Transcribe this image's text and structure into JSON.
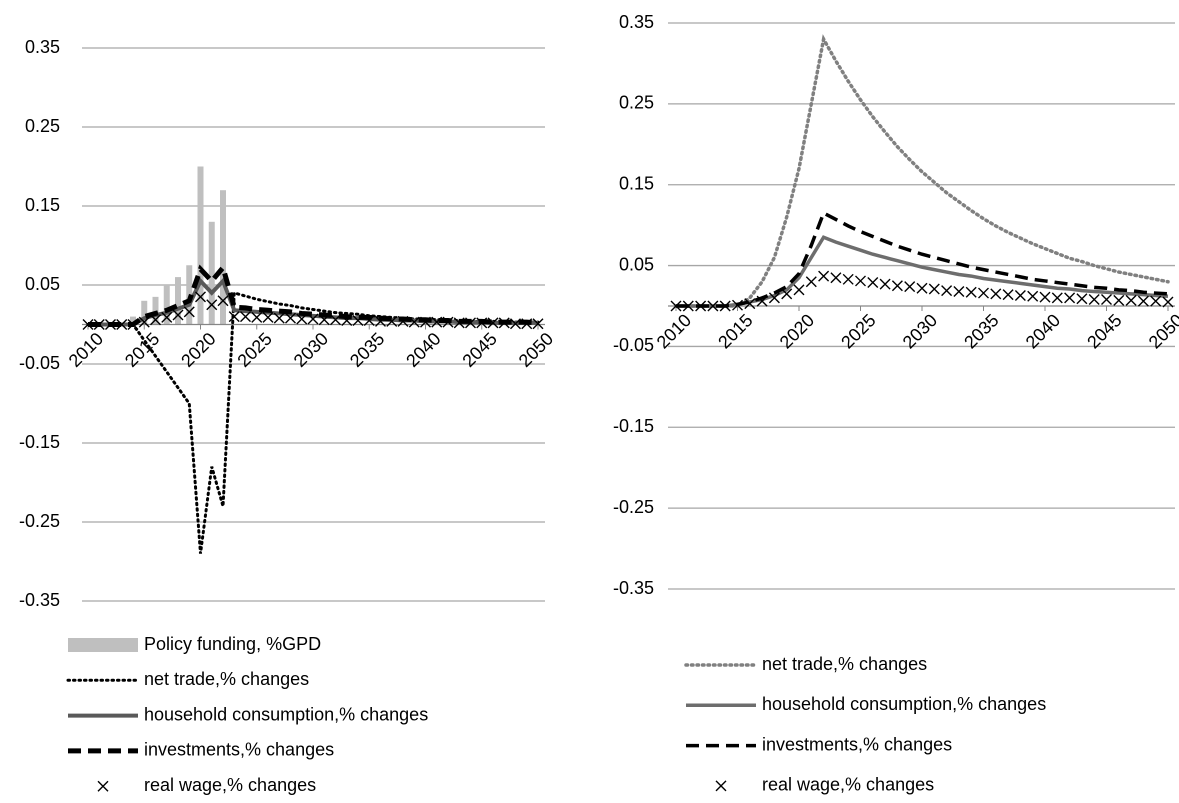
{
  "chart_data": [
    {
      "type": "line",
      "x": [
        2010,
        2011,
        2012,
        2013,
        2014,
        2015,
        2016,
        2017,
        2018,
        2019,
        2020,
        2021,
        2022,
        2023,
        2024,
        2025,
        2026,
        2027,
        2028,
        2029,
        2030,
        2031,
        2032,
        2033,
        2034,
        2035,
        2036,
        2037,
        2038,
        2039,
        2040,
        2041,
        2042,
        2043,
        2044,
        2045,
        2046,
        2047,
        2048,
        2049,
        2050
      ],
      "xlim": [
        2010,
        2050
      ],
      "xticks": [
        2010,
        2015,
        2020,
        2025,
        2030,
        2035,
        2040,
        2045,
        2050
      ],
      "ylim": [
        -0.35,
        0.35
      ],
      "yticks": [
        0.35,
        0.25,
        0.15,
        0.05,
        -0.05,
        -0.15,
        -0.25,
        -0.35
      ],
      "grid": true,
      "series": [
        {
          "name": "Policy funding, %GPD",
          "color": "#bfbfbf",
          "style": "bar",
          "values": [
            0,
            0,
            0,
            0,
            0.01,
            0.03,
            0.035,
            0.05,
            0.06,
            0.075,
            0.2,
            0.13,
            0.17,
            0,
            0,
            0,
            0,
            0,
            0,
            0,
            0,
            0,
            0,
            0,
            0,
            0,
            0,
            0,
            0,
            0,
            0,
            0,
            0,
            0,
            0,
            0,
            0,
            0,
            0,
            0,
            0
          ]
        },
        {
          "name": "net trade,% changes",
          "color": "#000000",
          "style": "dotted",
          "values": [
            0,
            0,
            0,
            0,
            0,
            -0.02,
            -0.04,
            -0.06,
            -0.08,
            -0.1,
            -0.29,
            -0.18,
            -0.23,
            0.04,
            0.036,
            0.032,
            0.029,
            0.026,
            0.024,
            0.021,
            0.019,
            0.017,
            0.015,
            0.014,
            0.013,
            0.011,
            0.01,
            0.009,
            0.008,
            0.007,
            0.007,
            0.006,
            0.005,
            0.005,
            0.004,
            0.004,
            0.004,
            0.003,
            0.003,
            0.003,
            0.003
          ]
        },
        {
          "name": "household consumption,% changes",
          "color": "#595959",
          "style": "solid",
          "values": [
            0,
            0,
            0,
            0,
            0,
            0.008,
            0.012,
            0.015,
            0.02,
            0.025,
            0.055,
            0.04,
            0.055,
            0.018,
            0.017,
            0.016,
            0.015,
            0.014,
            0.013,
            0.012,
            0.011,
            0.01,
            0.009,
            0.008,
            0.008,
            0.007,
            0.006,
            0.006,
            0.005,
            0.005,
            0.004,
            0.004,
            0.004,
            0.003,
            0.003,
            0.003,
            0.002,
            0.002,
            0.002,
            0.002,
            0.002
          ]
        },
        {
          "name": "investments,% changes",
          "color": "#000000",
          "style": "dashed",
          "values": [
            0,
            0,
            0,
            0,
            0,
            0.01,
            0.014,
            0.018,
            0.024,
            0.03,
            0.07,
            0.055,
            0.072,
            0.022,
            0.021,
            0.019,
            0.018,
            0.017,
            0.016,
            0.014,
            0.013,
            0.012,
            0.011,
            0.01,
            0.009,
            0.009,
            0.008,
            0.007,
            0.007,
            0.006,
            0.006,
            0.005,
            0.005,
            0.004,
            0.004,
            0.004,
            0.003,
            0.003,
            0.003,
            0.003,
            0.002
          ]
        },
        {
          "name": "real wage,% changes",
          "color": "#000000",
          "style": "x-marker",
          "values": [
            0,
            0,
            0,
            0,
            0,
            0.003,
            0.006,
            0.009,
            0.012,
            0.016,
            0.035,
            0.025,
            0.03,
            0.01,
            0.01,
            0.009,
            0.009,
            0.008,
            0.008,
            0.007,
            0.007,
            0.006,
            0.006,
            0.005,
            0.005,
            0.005,
            0.004,
            0.004,
            0.004,
            0.003,
            0.003,
            0.003,
            0.003,
            0.002,
            0.002,
            0.002,
            0.002,
            0.002,
            0.001,
            0.001,
            0.001
          ]
        }
      ]
    },
    {
      "type": "line",
      "x": [
        2010,
        2011,
        2012,
        2013,
        2014,
        2015,
        2016,
        2017,
        2018,
        2019,
        2020,
        2021,
        2022,
        2023,
        2024,
        2025,
        2026,
        2027,
        2028,
        2029,
        2030,
        2031,
        2032,
        2033,
        2034,
        2035,
        2036,
        2037,
        2038,
        2039,
        2040,
        2041,
        2042,
        2043,
        2044,
        2045,
        2046,
        2047,
        2048,
        2049,
        2050
      ],
      "xlim": [
        2010,
        2050
      ],
      "xticks": [
        2010,
        2015,
        2020,
        2025,
        2030,
        2035,
        2040,
        2045,
        2050
      ],
      "ylim": [
        -0.35,
        0.35
      ],
      "yticks": [
        0.35,
        0.25,
        0.15,
        0.05,
        -0.05,
        -0.15,
        -0.25,
        -0.35
      ],
      "grid": true,
      "series": [
        {
          "name": "net trade,% changes",
          "color": "#808080",
          "style": "dotted",
          "values": [
            0,
            0,
            0,
            0,
            0,
            0,
            0.01,
            0.03,
            0.06,
            0.11,
            0.17,
            0.25,
            0.33,
            0.303,
            0.278,
            0.255,
            0.234,
            0.215,
            0.197,
            0.181,
            0.166,
            0.153,
            0.14,
            0.129,
            0.118,
            0.108,
            0.099,
            0.091,
            0.084,
            0.077,
            0.071,
            0.065,
            0.059,
            0.055,
            0.05,
            0.046,
            0.042,
            0.039,
            0.036,
            0.033,
            0.03
          ]
        },
        {
          "name": "household consumption,% changes",
          "color": "#6d6d6d",
          "style": "solid",
          "values": [
            0,
            0,
            0,
            0,
            0,
            0.002,
            0.005,
            0.008,
            0.013,
            0.02,
            0.035,
            0.06,
            0.085,
            0.079,
            0.074,
            0.069,
            0.064,
            0.06,
            0.056,
            0.052,
            0.048,
            0.045,
            0.042,
            0.039,
            0.037,
            0.034,
            0.032,
            0.03,
            0.028,
            0.026,
            0.024,
            0.022,
            0.021,
            0.019,
            0.018,
            0.017,
            0.016,
            0.015,
            0.014,
            0.013,
            0.012
          ]
        },
        {
          "name": "investments,% changes",
          "color": "#000000",
          "style": "dashed",
          "values": [
            0,
            0,
            0,
            0,
            0,
            0.002,
            0.005,
            0.01,
            0.016,
            0.024,
            0.04,
            0.075,
            0.115,
            0.107,
            0.099,
            0.092,
            0.086,
            0.08,
            0.074,
            0.069,
            0.064,
            0.06,
            0.056,
            0.052,
            0.048,
            0.045,
            0.042,
            0.039,
            0.036,
            0.033,
            0.031,
            0.029,
            0.027,
            0.025,
            0.023,
            0.022,
            0.02,
            0.019,
            0.017,
            0.016,
            0.015
          ]
        },
        {
          "name": "real wage,% changes",
          "color": "#000000",
          "style": "x-marker",
          "values": [
            0,
            0,
            0,
            0,
            0,
            0.001,
            0.003,
            0.006,
            0.01,
            0.015,
            0.02,
            0.03,
            0.037,
            0.035,
            0.033,
            0.031,
            0.029,
            0.027,
            0.025,
            0.024,
            0.022,
            0.021,
            0.019,
            0.018,
            0.017,
            0.016,
            0.015,
            0.014,
            0.013,
            0.012,
            0.011,
            0.01,
            0.01,
            0.009,
            0.008,
            0.008,
            0.007,
            0.007,
            0.006,
            0.006,
            0.005
          ]
        }
      ]
    }
  ]
}
